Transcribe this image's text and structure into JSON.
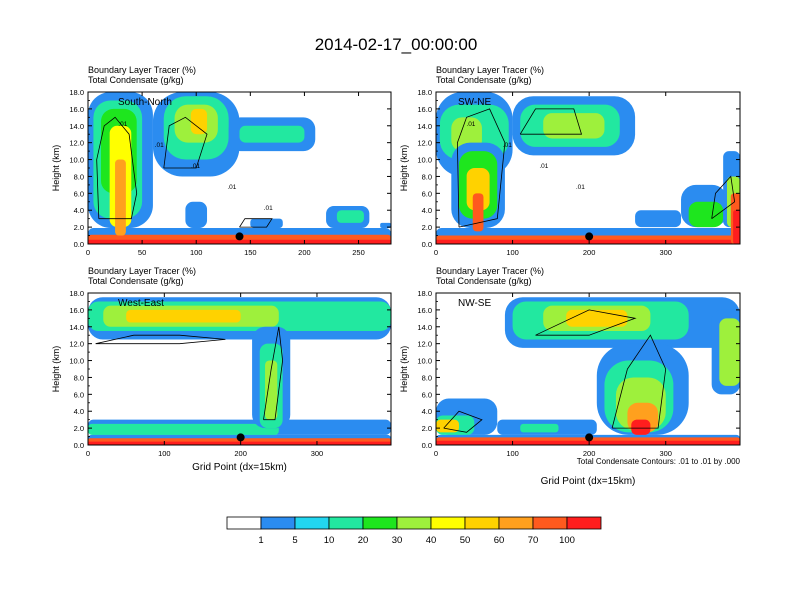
{
  "title": "2014-02-17_00:00:00",
  "palette": [
    "#ffffff",
    "#2b8cf0",
    "#22d6f0",
    "#22e8a0",
    "#1ee61e",
    "#9ef03c",
    "#ffff00",
    "#ffd200",
    "#ffa01e",
    "#ff5a1e",
    "#ff1e1e"
  ],
  "chart_data": [
    {
      "type": "heatmap",
      "panel": "top-left",
      "label": "South-North",
      "subtitle1": "Boundary Layer Tracer   (%)",
      "subtitle2": "Total Condensate   (g/kg)",
      "ylabel": "Height (km)",
      "xlabel": "",
      "xlim": [
        0,
        280
      ],
      "ylim": [
        0,
        18
      ],
      "xticks": [
        0,
        50,
        100,
        150,
        200,
        250
      ],
      "yticks": [
        "0.0",
        "2.0",
        "4.0",
        "6.0",
        "8.0",
        "10.0",
        "12.0",
        "14.0",
        "16.0",
        "18.0"
      ],
      "marker_x": 140,
      "contour_labels": [
        ".01",
        ".01",
        ".01",
        ".01",
        ".01"
      ]
    },
    {
      "type": "heatmap",
      "panel": "top-right",
      "label": "SW-NE",
      "subtitle1": "Boundary Layer Tracer   (%)",
      "subtitle2": "Total Condensate   (g/kg)",
      "ylabel": "Height (km)",
      "xlabel": "",
      "xlim": [
        0,
        397
      ],
      "ylim": [
        0,
        18
      ],
      "xticks": [
        0,
        100,
        200,
        300
      ],
      "yticks": [
        "0.0",
        "2.0",
        "4.0",
        "6.0",
        "8.0",
        "10.0",
        "12.0",
        "14.0",
        "16.0",
        "18.0"
      ],
      "marker_x": 200,
      "contour_labels": [
        ".01",
        ".01",
        ".01",
        ".01"
      ]
    },
    {
      "type": "heatmap",
      "panel": "bottom-left",
      "label": "West-East",
      "subtitle1": "Boundary Layer Tracer   (%)",
      "subtitle2": "Total Condensate   (g/kg)",
      "ylabel": "Height (km)",
      "xlabel": "Grid Point (dx=15km)",
      "xlim": [
        0,
        397
      ],
      "ylim": [
        0,
        18
      ],
      "xticks": [
        0,
        100,
        200,
        300
      ],
      "yticks": [
        "0.0",
        "2.0",
        "4.0",
        "6.0",
        "8.0",
        "10.0",
        "12.0",
        "14.0",
        "16.0",
        "18.0"
      ],
      "marker_x": 200,
      "contour_labels": []
    },
    {
      "type": "heatmap",
      "panel": "bottom-right",
      "label": "NW-SE",
      "subtitle1": "Boundary Layer Tracer   (%)",
      "subtitle2": "Total Condensate   (g/kg)",
      "ylabel": "Height (km)",
      "xlabel": "Grid Point (dx=15km)",
      "xlim": [
        0,
        397
      ],
      "ylim": [
        0,
        18
      ],
      "xticks": [
        0,
        100,
        200,
        300
      ],
      "yticks": [
        "0.0",
        "2.0",
        "4.0",
        "6.0",
        "8.0",
        "10.0",
        "12.0",
        "14.0",
        "16.0",
        "18.0"
      ],
      "marker_x": 200,
      "contour_labels": []
    }
  ],
  "contour_info": "Total Condensate Contours: .01 to .01 by .000",
  "colorbar": {
    "levels": [
      "1",
      "5",
      "10",
      "20",
      "30",
      "40",
      "50",
      "60",
      "70",
      "100"
    ]
  }
}
